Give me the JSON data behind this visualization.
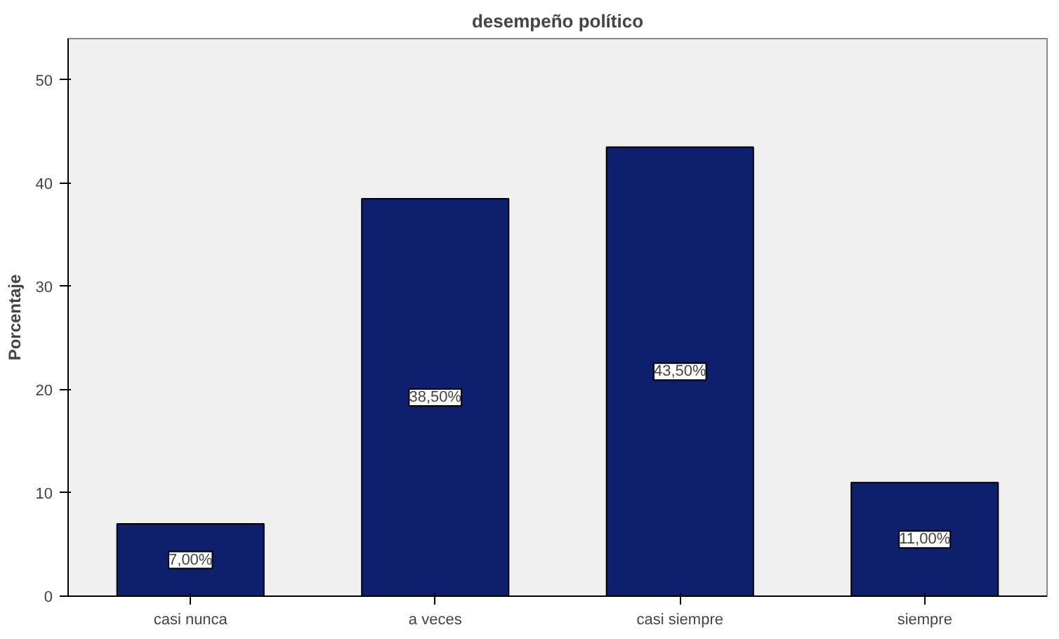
{
  "chart_data": {
    "type": "bar",
    "title": "desempeño político",
    "ylabel": "Porcentaje",
    "categories": [
      "casi nunca",
      "a veces",
      "casi siempre",
      "siempre"
    ],
    "values": [
      7.0,
      38.5,
      43.5,
      11.0
    ],
    "value_labels": [
      "7,00%",
      "38,50%",
      "43,50%",
      "11,00%"
    ],
    "color": "#0d1f6d",
    "ylim": [
      0,
      54
    ],
    "yticks": [
      0,
      10,
      20,
      30,
      40,
      50
    ],
    "grid": false
  }
}
